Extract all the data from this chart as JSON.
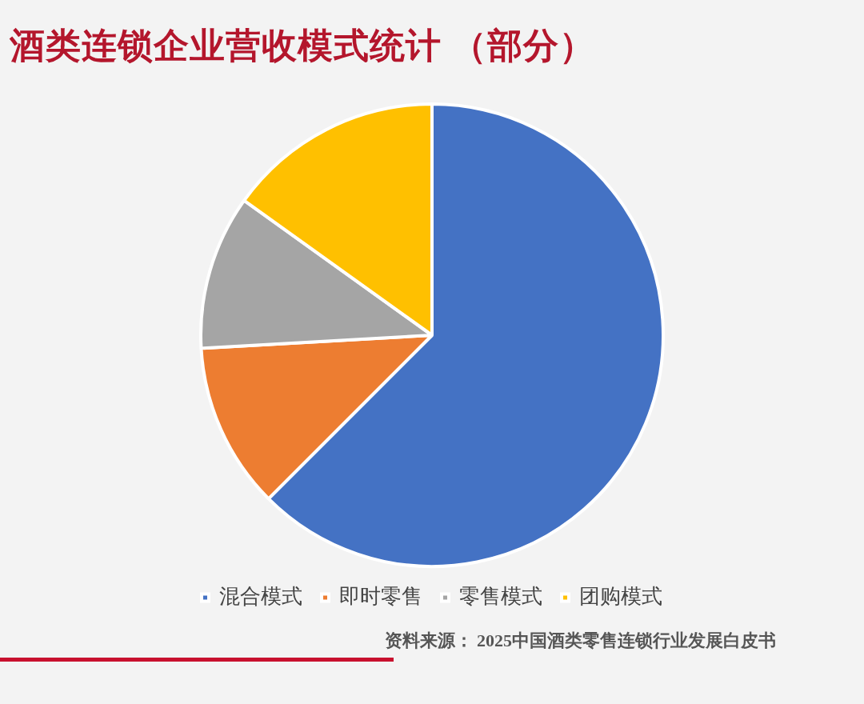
{
  "chart_data": {
    "type": "pie",
    "title": "酒类连锁企业营收模式统计 （部分）",
    "categories": [
      "混合模式",
      "即时零售",
      "零售模式",
      "团购模式"
    ],
    "values": [
      62.5,
      11.6,
      10.8,
      15.1
    ],
    "colors": [
      "#4472c4",
      "#ed7d31",
      "#a5a5a5",
      "#ffc000"
    ],
    "legend": "bottom",
    "annotations": [
      "资料来源： 2025中国酒类零售连锁行业发展白皮书"
    ]
  }
}
